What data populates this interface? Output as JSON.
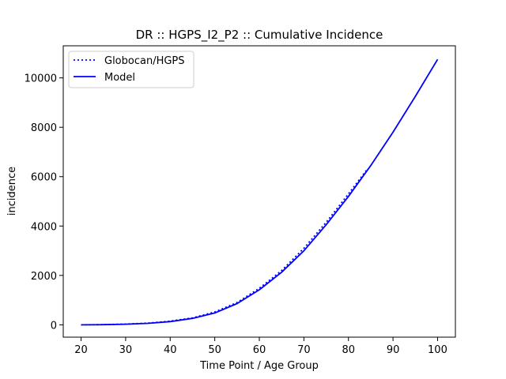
{
  "chart_data": {
    "type": "line",
    "title": "DR :: HGPS_I2_P2 ::  Cumulative Incidence",
    "xlabel": "Time Point / Age Group",
    "ylabel": "incidence",
    "xlim": [
      16,
      104
    ],
    "ylim": [
      -500,
      11300
    ],
    "xticks": [
      20,
      30,
      40,
      50,
      60,
      70,
      80,
      90,
      100
    ],
    "yticks": [
      0,
      2000,
      4000,
      6000,
      8000,
      10000
    ],
    "grid": false,
    "legend": "top-left",
    "series": [
      {
        "name": "Globocan/HGPS",
        "style": "dotted",
        "color": "#0000ff",
        "x": [
          20,
          25,
          30,
          35,
          40,
          45,
          50,
          55,
          60,
          65,
          70,
          75,
          80,
          84
        ],
        "y": [
          0,
          8,
          30,
          70,
          150,
          280,
          520,
          900,
          1480,
          2200,
          3100,
          4150,
          5300,
          6250
        ]
      },
      {
        "name": "Model",
        "style": "solid",
        "color": "#0000ff",
        "x": [
          20,
          25,
          30,
          35,
          40,
          45,
          50,
          55,
          60,
          65,
          70,
          75,
          80,
          85,
          90,
          95,
          100
        ],
        "y": [
          0,
          5,
          25,
          60,
          130,
          260,
          480,
          860,
          1420,
          2130,
          3000,
          4050,
          5200,
          6450,
          7800,
          9250,
          10750
        ]
      }
    ]
  }
}
